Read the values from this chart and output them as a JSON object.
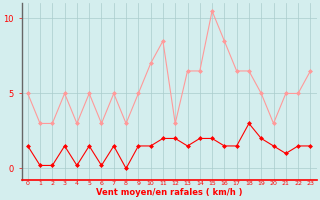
{
  "x": [
    0,
    1,
    2,
    3,
    4,
    5,
    6,
    7,
    8,
    9,
    10,
    11,
    12,
    13,
    14,
    15,
    16,
    17,
    18,
    19,
    20,
    21,
    22,
    23
  ],
  "wind_avg": [
    1.5,
    0.2,
    0.2,
    1.5,
    0.2,
    1.5,
    0.2,
    1.5,
    0.0,
    1.5,
    1.5,
    2.0,
    2.0,
    1.5,
    2.0,
    2.0,
    1.5,
    1.5,
    3.0,
    2.0,
    1.5,
    1.0,
    1.5,
    1.5
  ],
  "wind_gust": [
    5.0,
    3.0,
    3.0,
    5.0,
    3.0,
    5.0,
    3.0,
    5.0,
    3.0,
    5.0,
    7.0,
    8.5,
    3.0,
    6.5,
    6.5,
    10.5,
    8.5,
    6.5,
    6.5,
    5.0,
    3.0,
    5.0,
    5.0,
    6.5
  ],
  "color_avg": "#ff0000",
  "color_gust": "#ff9999",
  "bg_color": "#d4eeee",
  "grid_color": "#aacccc",
  "spine_left_color": "#666666",
  "axis_color": "#ff0000",
  "xlabel": "Vent moyen/en rafales ( km/h )",
  "ylim": [
    -0.8,
    11.0
  ],
  "yticks": [
    0,
    5,
    10
  ],
  "xlim": [
    -0.5,
    23.5
  ],
  "marker": "D",
  "markersize": 2.0,
  "linewidth": 0.8
}
